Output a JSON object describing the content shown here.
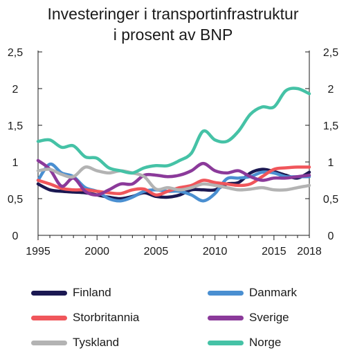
{
  "chart_data": {
    "type": "line",
    "title": "Investeringer i transportinfrastruktur",
    "subtitle": "i prosent av BNP",
    "xlabel": "",
    "ylabel": "",
    "xlim": [
      1995,
      2018
    ],
    "ylim": [
      0,
      2.5
    ],
    "x_ticks": [
      "1995",
      "2000",
      "2005",
      "2010",
      "2015",
      "2018"
    ],
    "y_ticks": [
      "0",
      "0,5",
      "1",
      "1,5",
      "2",
      "2,5"
    ],
    "grid": false,
    "legend_position": "bottom",
    "x": [
      1995,
      1996,
      1997,
      1998,
      1999,
      2000,
      2001,
      2002,
      2003,
      2004,
      2005,
      2006,
      2007,
      2008,
      2009,
      2010,
      2011,
      2012,
      2013,
      2014,
      2015,
      2016,
      2017,
      2018
    ],
    "series": [
      {
        "name": "Finland",
        "color": "#1b1852",
        "values": [
          0.7,
          0.62,
          0.6,
          0.59,
          0.58,
          0.55,
          0.52,
          0.5,
          0.53,
          0.58,
          0.53,
          0.52,
          0.55,
          0.62,
          0.62,
          0.62,
          0.7,
          0.72,
          0.85,
          0.9,
          0.87,
          0.82,
          0.78,
          0.86
        ]
      },
      {
        "name": "Danmark",
        "color": "#4a8fd1",
        "values": [
          0.75,
          0.97,
          0.85,
          0.8,
          0.65,
          0.6,
          0.5,
          0.47,
          0.52,
          0.6,
          0.62,
          0.6,
          0.6,
          0.55,
          0.47,
          0.57,
          0.77,
          0.78,
          0.8,
          0.86,
          0.85,
          0.8,
          0.8,
          0.8
        ]
      },
      {
        "name": "Storbritannia",
        "color": "#f0565b",
        "values": [
          0.75,
          0.7,
          0.64,
          0.62,
          0.62,
          0.6,
          0.58,
          0.57,
          0.62,
          0.63,
          0.55,
          0.6,
          0.65,
          0.68,
          0.75,
          0.72,
          0.7,
          0.68,
          0.7,
          0.8,
          0.9,
          0.92,
          0.93,
          0.93
        ]
      },
      {
        "name": "Sverige",
        "color": "#8b3a9a",
        "values": [
          1.02,
          0.9,
          0.67,
          0.78,
          0.6,
          0.55,
          0.62,
          0.7,
          0.7,
          0.82,
          0.82,
          0.8,
          0.82,
          0.88,
          0.98,
          0.88,
          0.85,
          0.88,
          0.8,
          0.75,
          0.78,
          0.78,
          0.8,
          0.82
        ]
      },
      {
        "name": "Tyskland",
        "color": "#b3b3b3",
        "values": [
          0.88,
          0.9,
          0.83,
          0.8,
          0.93,
          0.88,
          0.85,
          0.88,
          0.85,
          0.8,
          0.63,
          0.65,
          0.62,
          0.65,
          0.7,
          0.68,
          0.65,
          0.62,
          0.63,
          0.65,
          0.62,
          0.62,
          0.65,
          0.68
        ]
      },
      {
        "name": "Norge",
        "color": "#45c2a6",
        "values": [
          1.28,
          1.3,
          1.2,
          1.22,
          1.07,
          1.05,
          0.92,
          0.88,
          0.85,
          0.92,
          0.95,
          0.95,
          1.02,
          1.12,
          1.42,
          1.3,
          1.28,
          1.42,
          1.65,
          1.75,
          1.75,
          1.97,
          2.0,
          1.93
        ]
      }
    ]
  }
}
